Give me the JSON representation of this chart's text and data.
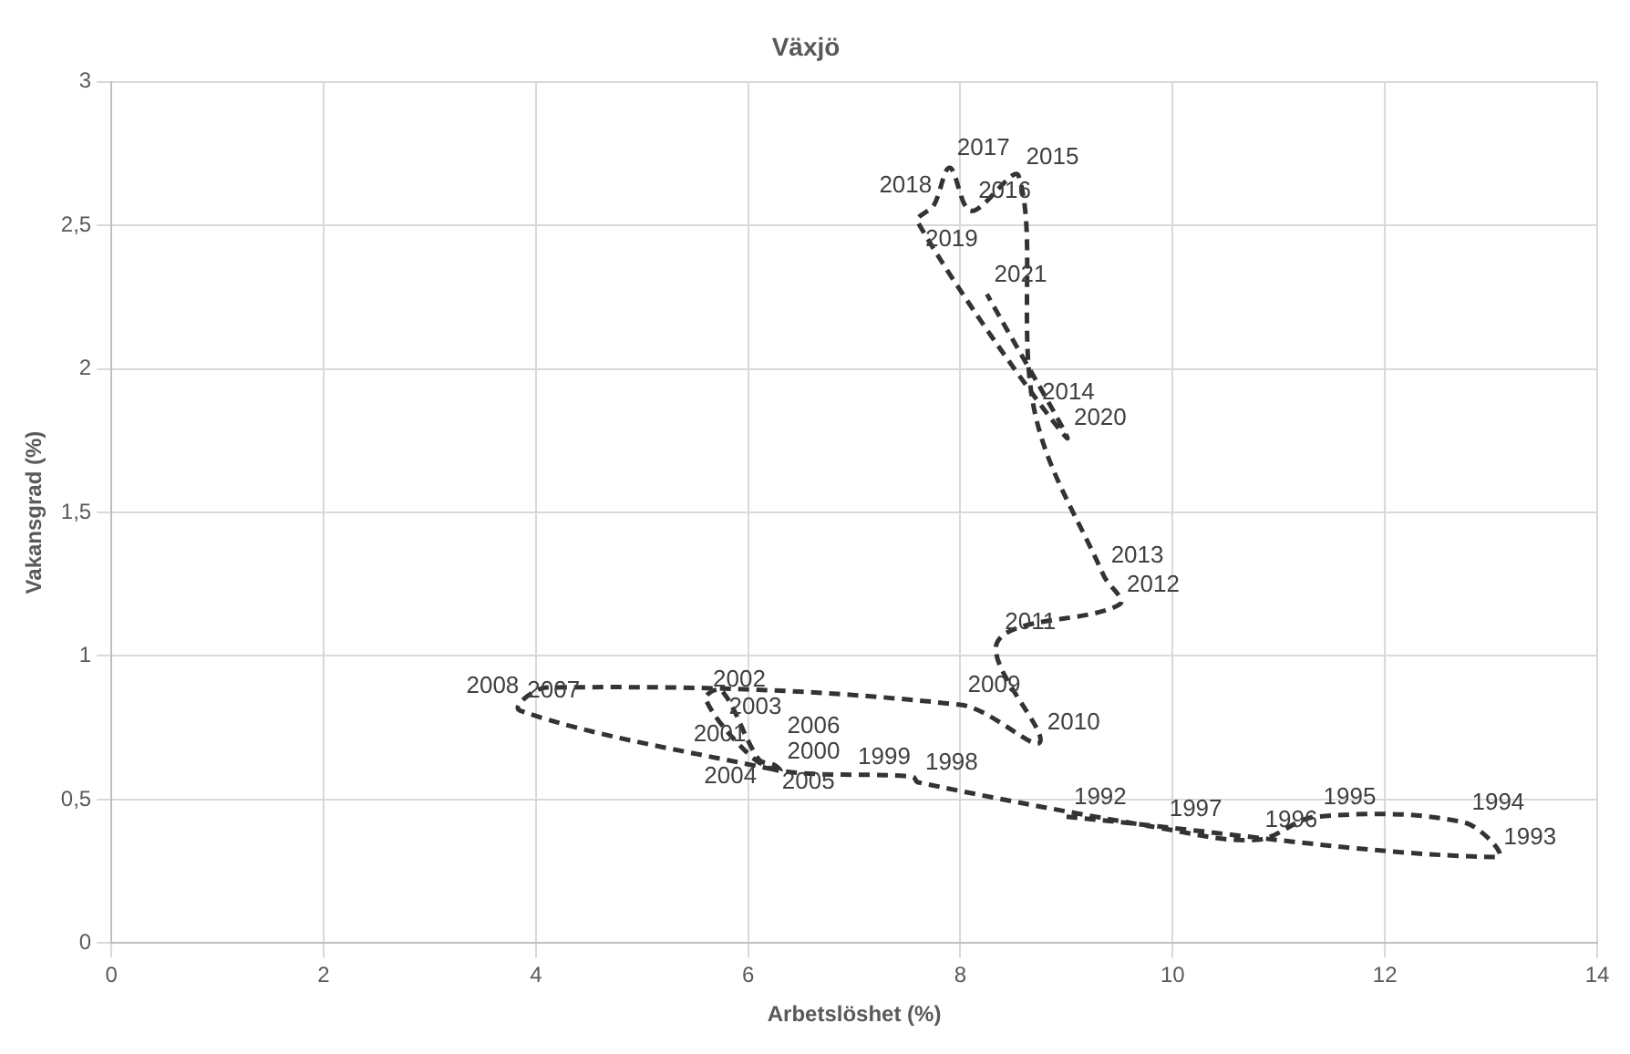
{
  "chart_data": {
    "type": "line",
    "title": "Växjö",
    "xlabel": "Arbetslöshet (%)",
    "ylabel": "Vakansgrad (%)",
    "x": [
      9.0,
      13.05,
      12.75,
      11.35,
      10.8,
      9.9,
      7.6,
      7.55,
      6.3,
      6.0,
      5.6,
      5.75,
      6.1,
      6.25,
      6.3,
      3.85,
      4.1,
      8.0,
      8.75,
      8.35,
      9.5,
      9.35,
      8.7,
      8.55,
      8.1,
      7.9,
      7.75,
      7.6,
      9.0,
      8.25
    ],
    "series": [
      {
        "color": "#333333",
        "values": [
          0.44,
          0.3,
          0.42,
          0.44,
          0.36,
          0.4,
          0.56,
          0.58,
          0.6,
          0.66,
          0.85,
          0.88,
          0.64,
          0.62,
          0.6,
          0.81,
          0.89,
          0.83,
          0.7,
          1.05,
          1.18,
          1.28,
          1.85,
          2.67,
          2.55,
          2.7,
          2.57,
          2.51,
          1.76,
          2.26
        ]
      }
    ],
    "annotations": [
      {
        "text": "1992",
        "x": 9.0,
        "y": 0.44
      },
      {
        "text": "1993",
        "x": 13.05,
        "y": 0.3
      },
      {
        "text": "1994",
        "x": 12.75,
        "y": 0.42
      },
      {
        "text": "1995",
        "x": 11.35,
        "y": 0.44
      },
      {
        "text": "1996",
        "x": 10.8,
        "y": 0.36
      },
      {
        "text": "1997",
        "x": 9.9,
        "y": 0.4
      },
      {
        "text": "1998",
        "x": 7.6,
        "y": 0.56
      },
      {
        "text": "1999",
        "x": 7.55,
        "y": 0.58
      },
      {
        "text": "2000",
        "x": 6.3,
        "y": 0.6
      },
      {
        "text": "2001",
        "x": 6.0,
        "y": 0.66
      },
      {
        "text": "2002",
        "x": 5.6,
        "y": 0.85
      },
      {
        "text": "2003",
        "x": 5.75,
        "y": 0.88
      },
      {
        "text": "2004",
        "x": 6.1,
        "y": 0.64
      },
      {
        "text": "2005",
        "x": 6.25,
        "y": 0.62
      },
      {
        "text": "2006",
        "x": 6.3,
        "y": 0.6
      },
      {
        "text": "2007",
        "x": 3.85,
        "y": 0.81
      },
      {
        "text": "2008",
        "x": 4.1,
        "y": 0.89
      },
      {
        "text": "2009",
        "x": 8.0,
        "y": 0.83
      },
      {
        "text": "2010",
        "x": 8.75,
        "y": 0.7
      },
      {
        "text": "2011",
        "x": 8.35,
        "y": 1.05
      },
      {
        "text": "2012",
        "x": 9.5,
        "y": 1.18
      },
      {
        "text": "2013",
        "x": 9.35,
        "y": 1.28
      },
      {
        "text": "2014",
        "x": 8.7,
        "y": 1.85
      },
      {
        "text": "2015",
        "x": 8.55,
        "y": 2.67
      },
      {
        "text": "2016",
        "x": 8.1,
        "y": 2.55
      },
      {
        "text": "2017",
        "x": 7.9,
        "y": 2.7
      },
      {
        "text": "2018",
        "x": 7.75,
        "y": 2.57
      },
      {
        "text": "2019",
        "x": 7.6,
        "y": 2.51
      },
      {
        "text": "2020",
        "x": 9.0,
        "y": 1.76
      },
      {
        "text": "2021",
        "x": 8.25,
        "y": 2.26
      }
    ],
    "xlim": [
      0,
      14
    ],
    "xticks": [
      0,
      2,
      4,
      6,
      8,
      10,
      12,
      14
    ],
    "ylim": [
      0,
      3
    ],
    "yticks": [
      0,
      {
        "value": 0.5,
        "label": "0,5"
      },
      1,
      {
        "value": 1.5,
        "label": "1,5"
      },
      2,
      {
        "value": 2.5,
        "label": "2,5"
      },
      3
    ],
    "grid": true,
    "legend": false,
    "marker": "none",
    "line_style": "dashed"
  }
}
